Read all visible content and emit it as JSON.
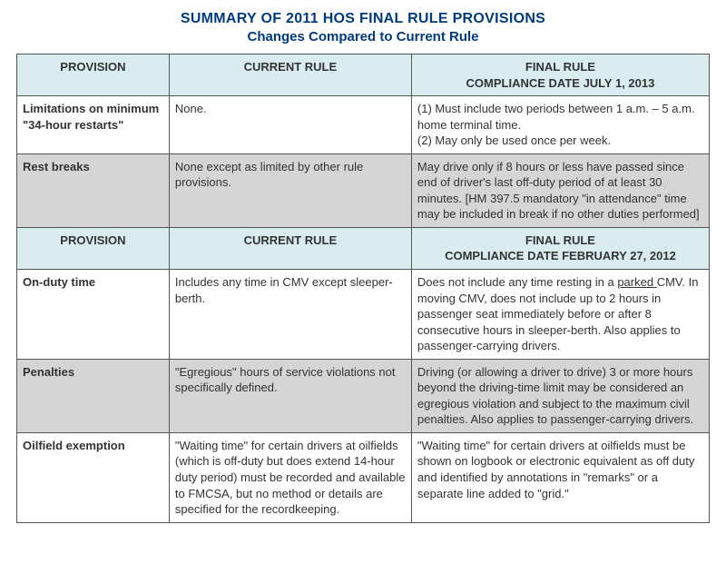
{
  "heading": {
    "title": "SUMMARY OF 2011 HOS FINAL RULE PROVISIONS",
    "subtitle": "Changes Compared to Current Rule"
  },
  "header1": {
    "provision": "PROVISION",
    "current": "CURRENT RULE",
    "final_line1": "FINAL RULE",
    "final_line2": "COMPLIANCE DATE JULY 1, 2013"
  },
  "header2": {
    "provision": "PROVISION",
    "current": "CURRENT RULE",
    "final_line1": "FINAL RULE",
    "final_line2": "COMPLIANCE DATE FEBRUARY 27, 2012"
  },
  "rows1": [
    {
      "provision": "Limitations on minimum \"34-hour restarts\"",
      "current": "None.",
      "final": "(1) Must include two periods between 1 a.m. – 5 a.m. home terminal time.\n(2) May only be used once per week."
    },
    {
      "provision": "Rest breaks",
      "current": "None except as limited by other rule provisions.",
      "final": "May drive only if 8 hours or less have passed since end of driver's last off-duty period of at least 30 minutes. [HM 397.5 mandatory \"in attendance\" time may be included in break if no other duties performed]"
    }
  ],
  "rows2": [
    {
      "provision": "On-duty time",
      "current": "Includes any time in CMV except sleeper-berth.",
      "final_pre": "Does not include any time resting in a ",
      "final_underline": "parked ",
      "final_post": "CMV. In moving CMV, does not include up to 2 hours in passenger seat immediately before or after 8 consecutive hours in sleeper-berth.  Also applies to passenger-carrying drivers."
    },
    {
      "provision": "Penalties",
      "current": "\"Egregious\" hours of service violations not specifically defined.",
      "final": "Driving (or allowing a driver to drive) 3 or more hours beyond the driving-time limit may be considered an egregious violation and subject to the maximum civil penalties. Also applies to passenger-carrying drivers."
    },
    {
      "provision": "Oilfield exemption",
      "current": "\"Waiting time\" for certain drivers at oilfields (which is off-duty but does extend 14-hour duty period) must be recorded and available to FMCSA, but no method or details are specified for the recordkeeping.",
      "final": "\"Waiting time\" for certain drivers at oilfields must be shown on logbook or electronic equivalent as off duty and identified by annotations in \"remarks\" or a separate line added to \"grid.\""
    }
  ]
}
